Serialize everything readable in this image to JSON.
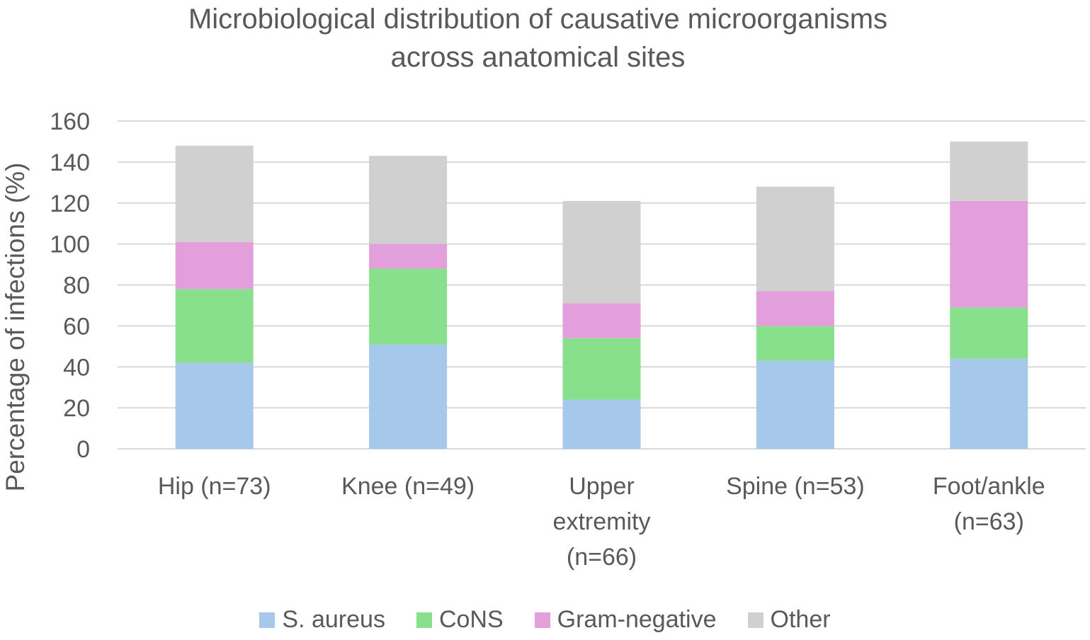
{
  "chart_data": {
    "type": "bar",
    "stacked": true,
    "title_lines": [
      "Microbiological distribution of causative microorganisms",
      "across anatomical sites"
    ],
    "xlabel": "",
    "ylabel": "Percentage of infections (%)",
    "ylim": [
      0,
      160
    ],
    "yticks": [
      "0",
      "20",
      "40",
      "60",
      "80",
      "100",
      "120",
      "140",
      "160"
    ],
    "grid": true,
    "legend_position": "bottom",
    "categories": [
      [
        "Hip (n=73)"
      ],
      [
        "Knee (n=49)"
      ],
      [
        "Upper",
        "extremity",
        "(n=66)"
      ],
      [
        "Spine (n=53)"
      ],
      [
        "Foot/ankle",
        "(n=63)"
      ]
    ],
    "series": [
      {
        "name": "S. aureus",
        "color": "#a6c8eb",
        "values": [
          42,
          51,
          24,
          43,
          44
        ]
      },
      {
        "name": "CoNS",
        "color": "#88e08c",
        "values": [
          36,
          37,
          30,
          17,
          25
        ]
      },
      {
        "name": "Gram-negative",
        "color": "#e39edc",
        "values": [
          23,
          12,
          17,
          17,
          52
        ]
      },
      {
        "name": "Other",
        "color": "#d0d0d0",
        "values": [
          47,
          43,
          50,
          51,
          29
        ]
      }
    ]
  }
}
